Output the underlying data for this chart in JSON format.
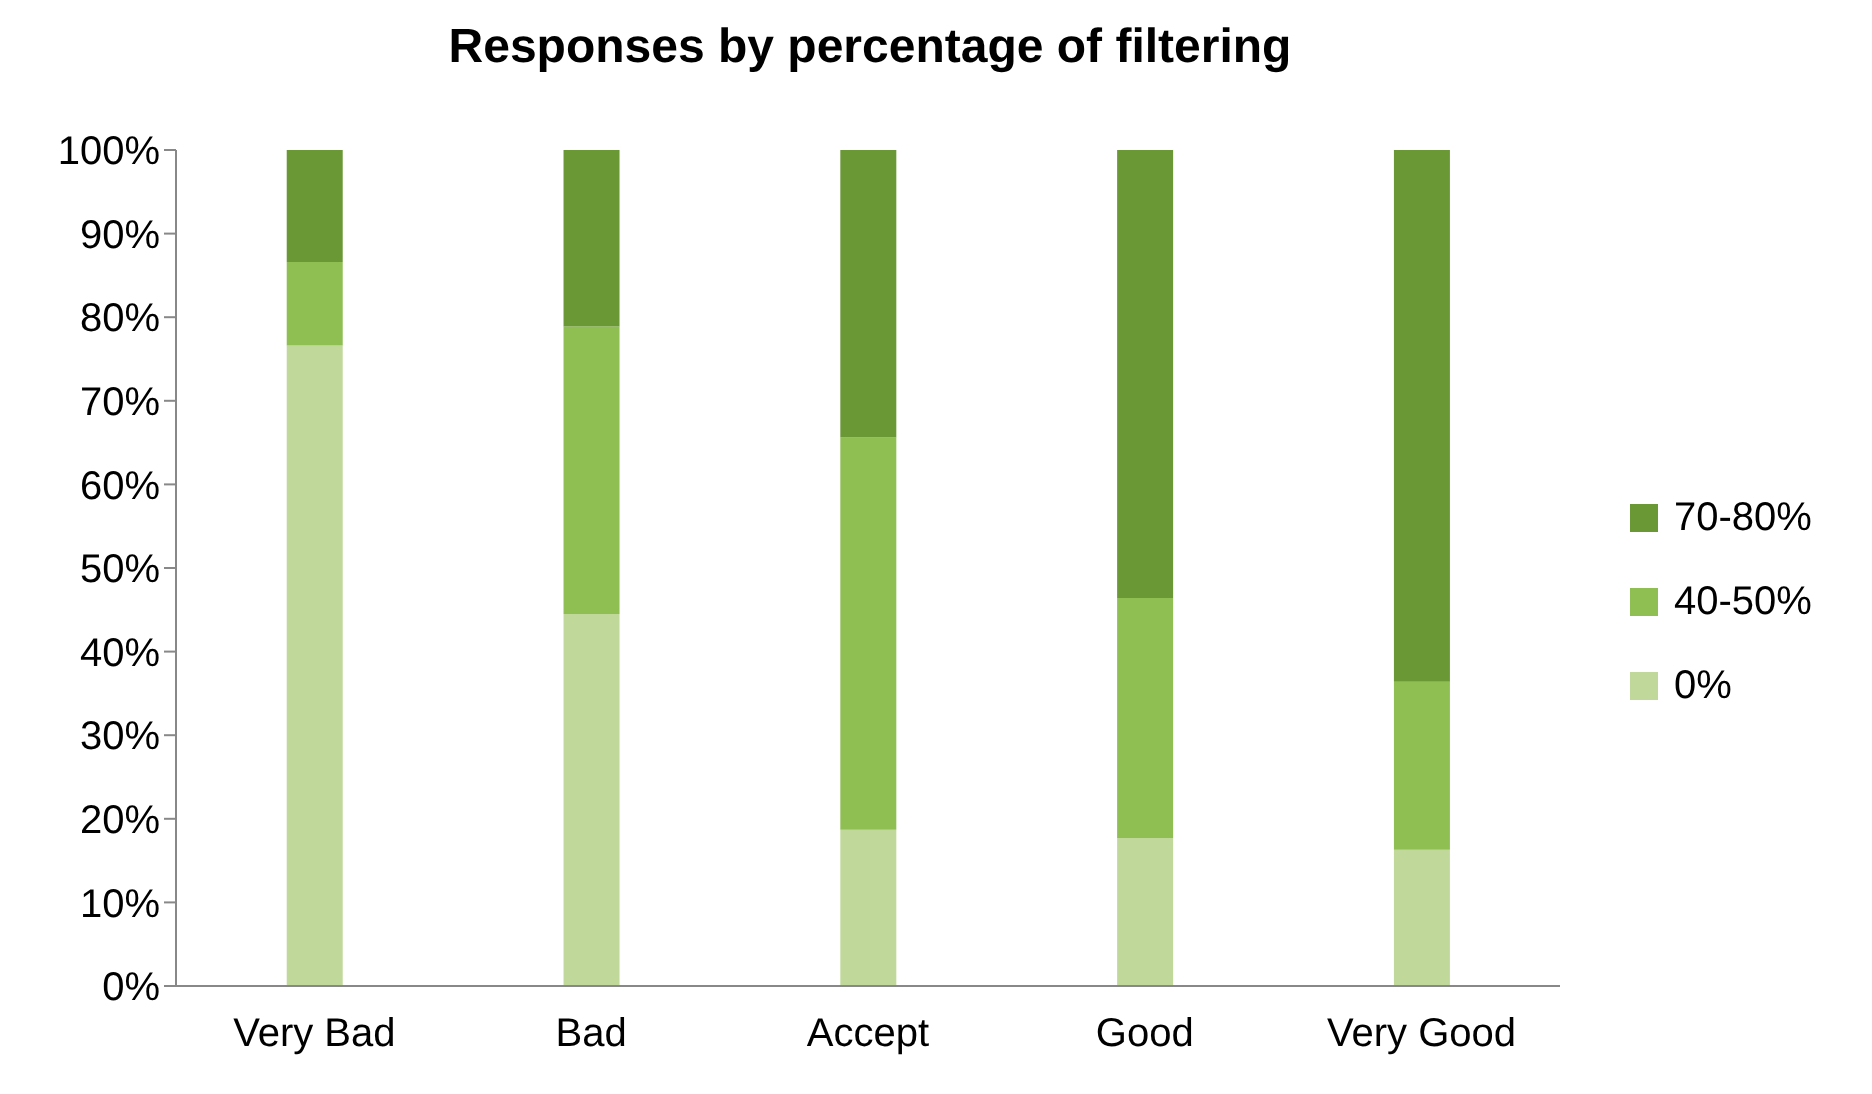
{
  "chart_data": {
    "type": "bar",
    "title": "Responses by percentage of filtering",
    "categories": [
      "Very Bad",
      "Bad",
      "Accept",
      "Good",
      "Very Good"
    ],
    "stacked": true,
    "series": [
      {
        "name": "0%",
        "color": "#c0d99b",
        "values": [
          76.6,
          44.5,
          18.7,
          17.7,
          16.3
        ]
      },
      {
        "name": "40-50%",
        "color": "#8fbe52",
        "values": [
          10.0,
          34.4,
          46.9,
          28.7,
          20.1
        ]
      },
      {
        "name": "70-80%",
        "color": "#6a9835",
        "values": [
          13.4,
          21.1,
          34.4,
          53.6,
          63.6
        ]
      }
    ],
    "ylim": [
      0,
      100
    ],
    "yticks": [
      {
        "value": 0,
        "label": "0%"
      },
      {
        "value": 10,
        "label": "10%"
      },
      {
        "value": 20,
        "label": "20%"
      },
      {
        "value": 30,
        "label": "30%"
      },
      {
        "value": 40,
        "label": "40%"
      },
      {
        "value": 50,
        "label": "50%"
      },
      {
        "value": 60,
        "label": "60%"
      },
      {
        "value": 70,
        "label": "70%"
      },
      {
        "value": 80,
        "label": "80%"
      },
      {
        "value": 90,
        "label": "90%"
      },
      {
        "value": 100,
        "label": "100%"
      }
    ],
    "grid": false,
    "legend": "right"
  }
}
